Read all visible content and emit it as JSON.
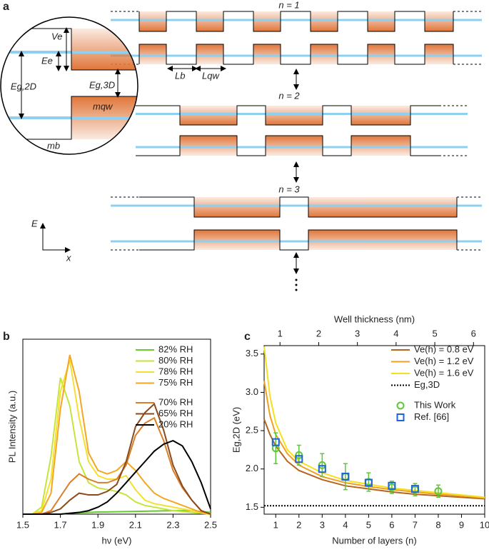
{
  "diagram": {
    "panel": "a",
    "rows": [
      "n = 1",
      "n = 2",
      "n = 3"
    ],
    "barrier_width": "Lb",
    "well_width": "Lqw",
    "offset": "Ve",
    "confinement": "Ee",
    "gap_2d": "Eg,2D",
    "gap_3d": "Eg,3D",
    "mass_well": "mqw",
    "mass_barrier": "mb",
    "energy_axis": "E",
    "position_axis": "x"
  },
  "chart_data": [
    {
      "type": "line",
      "panel": "b",
      "xlabel": "hν (eV)",
      "ylabel": "PL Intensity (a.u.)",
      "xlim": [
        1.5,
        2.5
      ],
      "xticks": [
        1.5,
        1.7,
        1.9,
        2.1,
        2.3,
        2.5
      ],
      "ylim": [
        0,
        1
      ],
      "legend": "upper right",
      "x": [
        1.5,
        1.55,
        1.6,
        1.65,
        1.7,
        1.75,
        1.8,
        1.85,
        1.9,
        1.95,
        2.0,
        2.05,
        2.1,
        2.15,
        2.2,
        2.25,
        2.3,
        2.35,
        2.4,
        2.45,
        2.5
      ],
      "series": [
        {
          "name": "82% RH",
          "color": "#66cc2a",
          "values": [
            0,
            0,
            0,
            0,
            0,
            0.005,
            0.008,
            0.01,
            0.012,
            0.013,
            0.014,
            0.015,
            0.016,
            0.017,
            0.018,
            0.019,
            0.02,
            0.02,
            0.02,
            0.015,
            0.01
          ]
        },
        {
          "name": "80% RH",
          "color": "#c4e63a",
          "values": [
            0,
            0,
            0.04,
            0.33,
            0.78,
            0.62,
            0.3,
            0.18,
            0.15,
            0.14,
            0.13,
            0.11,
            0.07,
            0.05,
            0.04,
            0.03,
            0.02,
            0.015,
            0.01,
            0.005,
            0
          ]
        },
        {
          "name": "78% RH",
          "color": "#f4e030",
          "values": [
            0,
            0,
            0.02,
            0.2,
            0.7,
            0.88,
            0.55,
            0.3,
            0.22,
            0.2,
            0.2,
            0.22,
            0.14,
            0.08,
            0.06,
            0.05,
            0.04,
            0.03,
            0.02,
            0.01,
            0
          ]
        },
        {
          "name": "75% RH",
          "color": "#f5a623",
          "values": [
            0,
            0,
            0.01,
            0.12,
            0.6,
            0.91,
            0.7,
            0.35,
            0.25,
            0.23,
            0.25,
            0.3,
            0.25,
            0.18,
            0.12,
            0.09,
            0.07,
            0.05,
            0.03,
            0.01,
            0
          ]
        },
        {
          "name": "70% RH",
          "color": "#d97f2a",
          "values": [
            0,
            0,
            0,
            0.02,
            0.1,
            0.18,
            0.23,
            0.2,
            0.18,
            0.18,
            0.2,
            0.28,
            0.45,
            0.52,
            0.55,
            0.42,
            0.25,
            0.15,
            0.08,
            0.02,
            0
          ]
        },
        {
          "name": "65% RH",
          "color": "#8b4a1c",
          "values": [
            0,
            0,
            0,
            0.01,
            0.03,
            0.08,
            0.12,
            0.11,
            0.11,
            0.13,
            0.17,
            0.3,
            0.5,
            0.58,
            0.63,
            0.48,
            0.28,
            0.16,
            0.08,
            0.02,
            0
          ]
        },
        {
          "name": "20% RH",
          "color": "#000000",
          "values": [
            0,
            0,
            0,
            0,
            0,
            0.005,
            0.01,
            0.02,
            0.04,
            0.07,
            0.12,
            0.18,
            0.24,
            0.3,
            0.36,
            0.4,
            0.42,
            0.39,
            0.3,
            0.18,
            0.03
          ]
        }
      ]
    },
    {
      "type": "line",
      "panel": "c",
      "xlabel": "Number of layers (n)",
      "ylabel": "Eg,2D (eV)",
      "x2label": "Well thickness (nm)",
      "xlim": [
        0.5,
        10
      ],
      "xticks": [
        1,
        2,
        3,
        4,
        5,
        6,
        7,
        8,
        9,
        10
      ],
      "x2lim": [
        0.59,
        6.29
      ],
      "x2ticks": [
        1,
        2,
        3,
        4,
        5,
        6
      ],
      "ylim": [
        1.41,
        3.61
      ],
      "yticks": [
        {
          "value": 1.5,
          "label": "1.5"
        },
        {
          "value": 2,
          "label": "2.0"
        },
        {
          "value": 2.5,
          "label": "2.5"
        },
        {
          "value": 3,
          "label": "3.0"
        },
        {
          "value": 3.5,
          "label": "3.5"
        }
      ],
      "legend": "upper right",
      "series": [
        {
          "name": "Ve(h) = 0.8 eV",
          "color": "#b5651d",
          "style": "solid",
          "x": [
            0.5,
            0.75,
            1,
            1.5,
            2,
            3,
            4,
            5,
            6,
            7,
            8,
            9,
            10
          ],
          "values": [
            2.65,
            2.45,
            2.3,
            2.1,
            1.98,
            1.86,
            1.78,
            1.74,
            1.7,
            1.67,
            1.65,
            1.63,
            1.61
          ]
        },
        {
          "name": "Ve(h) = 1.2 eV",
          "color": "#f0a020",
          "style": "solid",
          "x": [
            0.5,
            0.75,
            1,
            1.5,
            2,
            3,
            4,
            5,
            6,
            7,
            8,
            9,
            10
          ],
          "values": [
            3.15,
            2.7,
            2.45,
            2.2,
            2.05,
            1.9,
            1.82,
            1.77,
            1.73,
            1.7,
            1.67,
            1.65,
            1.62
          ]
        },
        {
          "name": "Ve(h) = 1.6 eV",
          "color": "#f5e020",
          "style": "solid",
          "x": [
            0.5,
            0.75,
            1,
            1.5,
            2,
            3,
            4,
            5,
            6,
            7,
            8,
            9,
            10
          ],
          "values": [
            3.6,
            2.95,
            2.6,
            2.25,
            2.1,
            1.95,
            1.85,
            1.8,
            1.75,
            1.72,
            1.69,
            1.66,
            1.63
          ]
        },
        {
          "name": "Eg,3D",
          "color": "#000000",
          "style": "dotted",
          "x": [
            0.5,
            10
          ],
          "values": [
            1.52,
            1.52
          ]
        },
        {
          "name": "This Work",
          "color": "#5ec73a",
          "style": "circle",
          "x": [
            1,
            2,
            3,
            4,
            5,
            6,
            7,
            8
          ],
          "values": [
            2.27,
            2.18,
            2.05,
            1.9,
            1.83,
            1.76,
            1.73,
            1.71
          ],
          "errors": [
            0.2,
            0.13,
            0.15,
            0.17,
            0.12,
            0.08,
            0.08,
            0.08
          ]
        },
        {
          "name": "Ref. [66]",
          "color": "#1e64d8",
          "style": "square",
          "x": [
            1,
            2,
            3,
            4,
            5,
            6,
            7
          ],
          "values": [
            2.35,
            2.13,
            2.0,
            1.9,
            1.82,
            1.78,
            1.74
          ]
        }
      ]
    }
  ]
}
